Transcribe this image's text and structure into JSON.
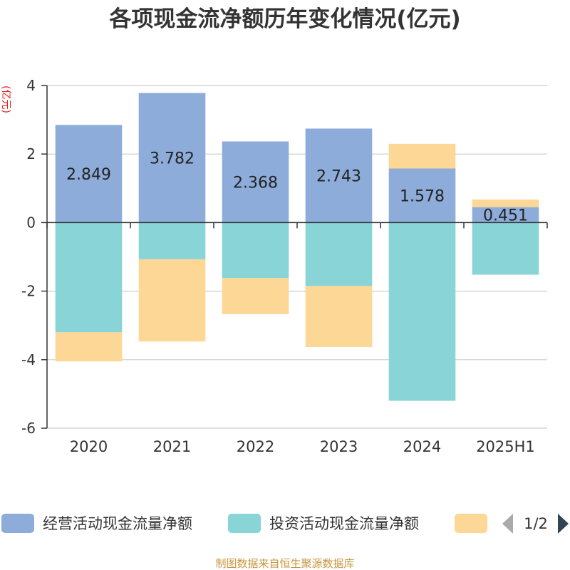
{
  "chart_data": {
    "type": "bar",
    "stacked": true,
    "title": "各项现金流净额历年变化情况(亿元)",
    "ylabel": "(亿元)",
    "xlabel": "",
    "categories": [
      "2020",
      "2021",
      "2022",
      "2023",
      "2024",
      "2025H1"
    ],
    "ylim": [
      -6,
      4
    ],
    "yticks": [
      -6,
      -4,
      -2,
      0,
      2,
      4
    ],
    "grid": true,
    "series": [
      {
        "name": "经营活动现金流量净额",
        "color": "#8eacd9",
        "values": [
          2.849,
          3.782,
          2.368,
          2.743,
          1.578,
          0.451
        ],
        "data_labels": [
          "2.849",
          "3.782",
          "2.368",
          "2.743",
          "1.578",
          "0.451"
        ]
      },
      {
        "name": "投资活动现金流量净额",
        "color": "#88d4d7",
        "values": [
          -3.2,
          -1.07,
          -1.62,
          -1.85,
          -5.2,
          -1.52
        ]
      },
      {
        "name": "",
        "color": "#fdd795",
        "values": [
          -0.85,
          -2.4,
          -1.05,
          -1.78,
          0.72,
          0.22
        ]
      }
    ],
    "legend": {
      "position": "bottom",
      "page_indicator": "1/2"
    },
    "source_note": "制图数据来自恒生聚源数据库"
  }
}
